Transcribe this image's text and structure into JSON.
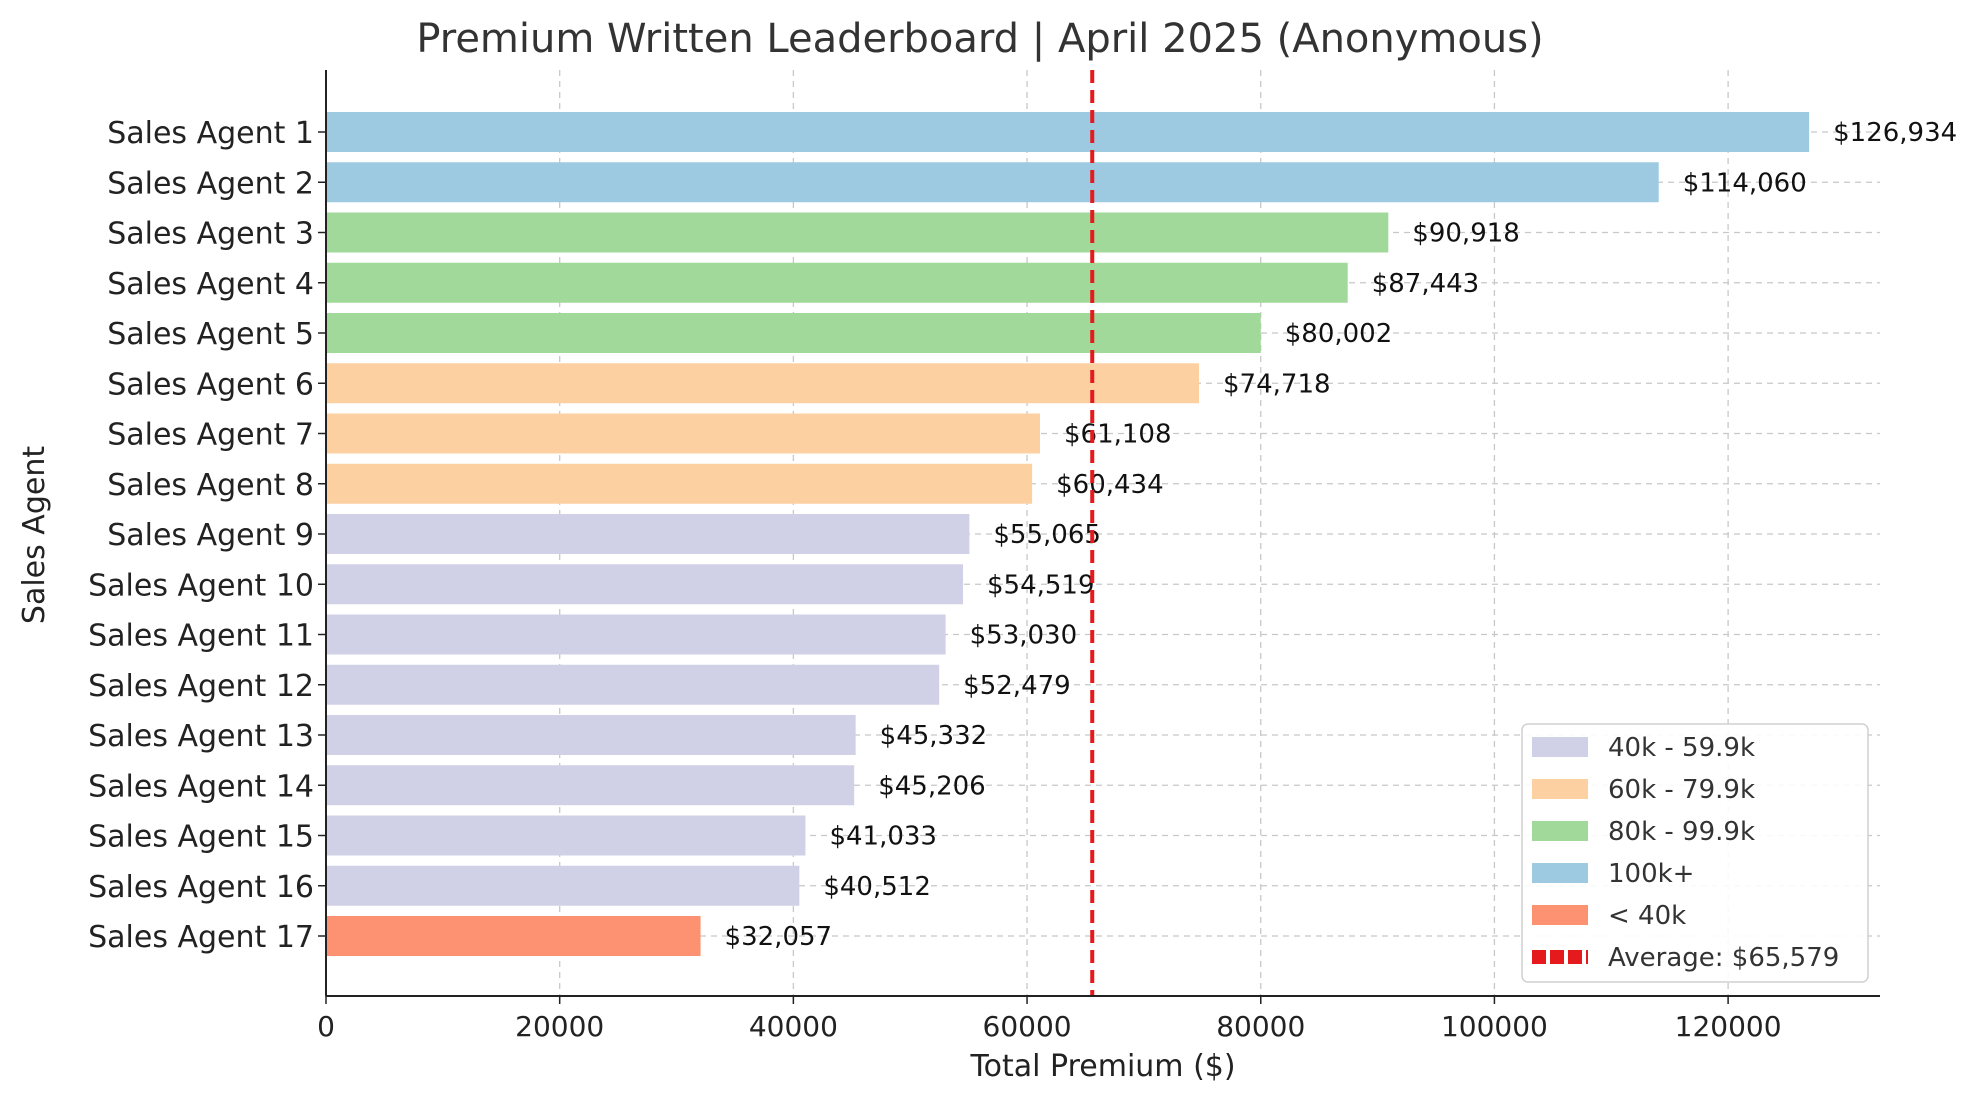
{
  "chart_data": {
    "type": "bar",
    "orientation": "horizontal",
    "title": "Premium Written Leaderboard | April 2025 (Anonymous)",
    "xlabel": "Total Premium ($)",
    "ylabel": "Sales Agent",
    "xlim": [
      0,
      133000
    ],
    "xticks": [
      0,
      20000,
      40000,
      60000,
      80000,
      100000,
      120000
    ],
    "xtick_labels": [
      "0",
      "20000",
      "40000",
      "60000",
      "80000",
      "100000",
      "120000"
    ],
    "grid": true,
    "legend_position": "bottom-right",
    "categories": [
      "Sales Agent 1",
      "Sales Agent 2",
      "Sales Agent 3",
      "Sales Agent 4",
      "Sales Agent 5",
      "Sales Agent 6",
      "Sales Agent 7",
      "Sales Agent 8",
      "Sales Agent 9",
      "Sales Agent 10",
      "Sales Agent 11",
      "Sales Agent 12",
      "Sales Agent 13",
      "Sales Agent 14",
      "Sales Agent 15",
      "Sales Agent 16",
      "Sales Agent 17"
    ],
    "values": [
      126934,
      114060,
      90918,
      87443,
      80002,
      74718,
      61108,
      60434,
      55065,
      54519,
      53030,
      52479,
      45332,
      45206,
      41033,
      40512,
      32057
    ],
    "value_labels": [
      "$126,934",
      "$114,060",
      "$90,918",
      "$87,443",
      "$80,002",
      "$74,718",
      "$61,108",
      "$60,434",
      "$55,065",
      "$54,519",
      "$53,030",
      "$52,479",
      "$45,332",
      "$45,206",
      "$41,033",
      "$40,512",
      "$32,057"
    ],
    "tiers": [
      "100k+",
      "100k+",
      "80k - 99.9k",
      "80k - 99.9k",
      "80k - 99.9k",
      "60k - 79.9k",
      "60k - 79.9k",
      "60k - 79.9k",
      "40k - 59.9k",
      "40k - 59.9k",
      "40k - 59.9k",
      "40k - 59.9k",
      "40k - 59.9k",
      "40k - 59.9k",
      "40k - 59.9k",
      "40k - 59.9k",
      "< 40k"
    ],
    "tier_colors": {
      "40k - 59.9k": "#d0d1e6",
      "60k - 79.9k": "#fdd0a2",
      "80k - 99.9k": "#a1d99b",
      "100k+": "#9ecae1",
      "< 40k": "#fc9272"
    },
    "average": {
      "value": 65579,
      "label": "Average: $65,579",
      "color": "#e41a1c"
    },
    "legend": [
      {
        "label": "40k - 59.9k",
        "color": "#d0d1e6"
      },
      {
        "label": "60k - 79.9k",
        "color": "#fdd0a2"
      },
      {
        "label": "80k - 99.9k",
        "color": "#a1d99b"
      },
      {
        "label": "100k+",
        "color": "#9ecae1"
      },
      {
        "label": "< 40k",
        "color": "#fc9272"
      }
    ]
  }
}
